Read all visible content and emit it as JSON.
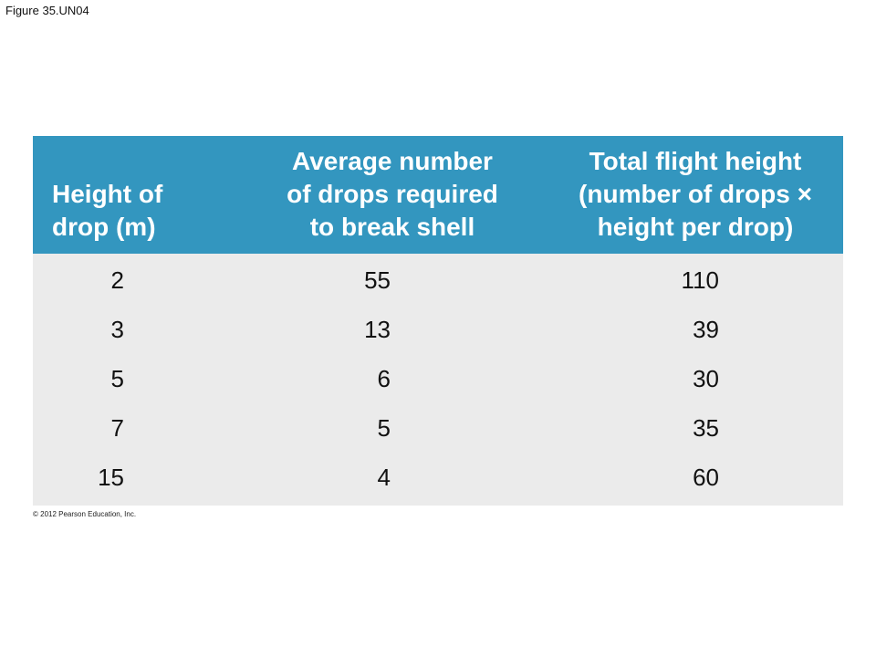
{
  "figure_title": "Figure 35.UN04",
  "copyright": "© 2012 Pearson Education, Inc.",
  "colors": {
    "header_bg": "#3396bf",
    "body_bg": "#ebebeb"
  },
  "chart_data": {
    "type": "table",
    "columns": [
      {
        "lines": [
          "Height of",
          "drop (m)"
        ]
      },
      {
        "lines": [
          "Average number",
          "of drops required",
          "to break shell"
        ]
      },
      {
        "lines": [
          "Total flight height",
          "(number of drops ×",
          "height per drop)"
        ]
      }
    ],
    "rows": [
      [
        "2",
        "55",
        "110"
      ],
      [
        "3",
        "13",
        "39"
      ],
      [
        "5",
        "6",
        "30"
      ],
      [
        "7",
        "5",
        "35"
      ],
      [
        "15",
        "4",
        "60"
      ]
    ]
  }
}
